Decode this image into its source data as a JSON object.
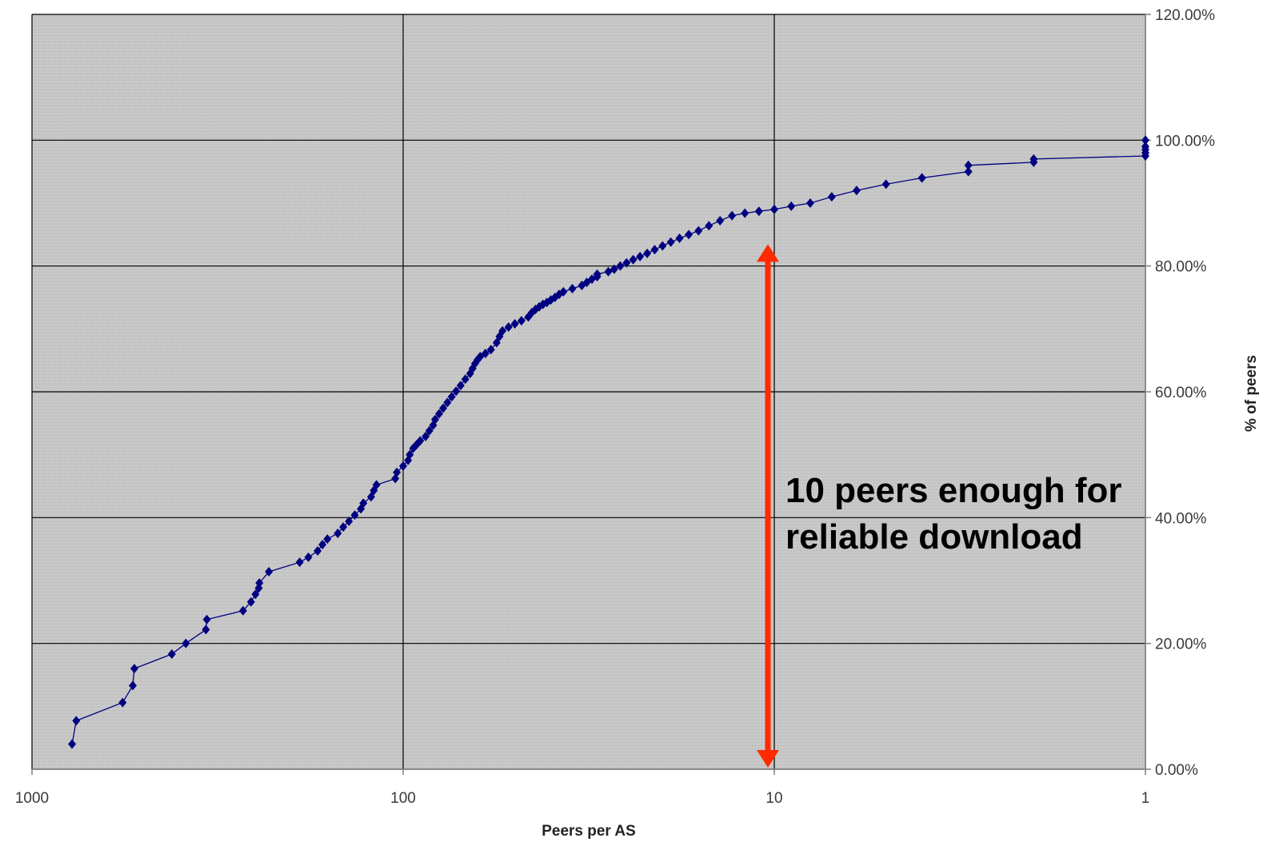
{
  "chart_data": {
    "type": "line",
    "xlabel": "Peers per AS",
    "ylabel": "% of peers",
    "x_scale": "log",
    "x_reversed": true,
    "xlim": [
      1000,
      1
    ],
    "ylim": [
      0,
      1.2
    ],
    "grid": true,
    "legend": "none",
    "x_ticks": [
      {
        "value": 1000,
        "label": "1000"
      },
      {
        "value": 100,
        "label": "100"
      },
      {
        "value": 10,
        "label": "10"
      },
      {
        "value": 1,
        "label": "1"
      }
    ],
    "y_ticks": [
      {
        "value": 0.0,
        "label": "0.00%"
      },
      {
        "value": 0.2,
        "label": "20.00%"
      },
      {
        "value": 0.4,
        "label": "40.00%"
      },
      {
        "value": 0.6,
        "label": "60.00%"
      },
      {
        "value": 0.8,
        "label": "80.00%"
      },
      {
        "value": 1.0,
        "label": "100.00%"
      },
      {
        "value": 1.2,
        "label": "120.00%"
      }
    ],
    "series": [
      {
        "x": [
          780,
          760,
          570,
          535,
          530,
          420,
          385,
          340,
          338,
          270,
          257,
          250,
          245,
          244,
          230,
          190,
          180,
          170,
          165,
          160,
          150,
          145,
          140,
          135,
          130,
          128,
          122,
          120,
          118,
          105,
          104,
          100,
          97,
          96,
          94,
          92,
          90,
          87,
          85,
          83,
          82,
          80,
          78,
          76,
          74,
          72,
          70,
          68,
          66,
          65,
          64,
          63,
          62,
          60,
          58,
          56,
          55,
          54,
          52,
          50,
          48,
          46,
          45,
          44,
          43,
          42,
          41,
          40,
          39,
          38,
          37,
          35,
          33,
          32,
          31,
          30,
          30,
          28,
          27,
          26,
          25,
          24,
          23,
          22,
          21,
          20,
          19,
          18,
          17,
          16,
          15,
          14,
          13,
          12,
          11,
          10,
          9,
          8,
          7,
          6,
          5,
          4,
          4,
          3,
          3,
          2,
          2,
          1,
          1,
          1,
          1,
          1
        ],
        "y": [
          0.04,
          0.077,
          0.106,
          0.133,
          0.16,
          0.183,
          0.2,
          0.222,
          0.238,
          0.252,
          0.266,
          0.278,
          0.288,
          0.296,
          0.314,
          0.329,
          0.337,
          0.347,
          0.357,
          0.366,
          0.375,
          0.385,
          0.394,
          0.404,
          0.414,
          0.423,
          0.433,
          0.443,
          0.452,
          0.462,
          0.472,
          0.482,
          0.491,
          0.5,
          0.51,
          0.516,
          0.522,
          0.529,
          0.538,
          0.547,
          0.556,
          0.565,
          0.574,
          0.583,
          0.592,
          0.601,
          0.61,
          0.62,
          0.629,
          0.637,
          0.645,
          0.651,
          0.656,
          0.661,
          0.667,
          0.678,
          0.688,
          0.697,
          0.703,
          0.708,
          0.713,
          0.719,
          0.726,
          0.731,
          0.735,
          0.739,
          0.742,
          0.746,
          0.75,
          0.755,
          0.759,
          0.764,
          0.769,
          0.774,
          0.779,
          0.783,
          0.787,
          0.791,
          0.795,
          0.8,
          0.805,
          0.81,
          0.815,
          0.82,
          0.826,
          0.832,
          0.838,
          0.844,
          0.85,
          0.856,
          0.864,
          0.872,
          0.88,
          0.884,
          0.887,
          0.89,
          0.895,
          0.9,
          0.91,
          0.92,
          0.93,
          0.94,
          0.94,
          0.95,
          0.96,
          0.965,
          0.97,
          0.975,
          0.98,
          0.99,
          1.0,
          0.985
        ]
      }
    ],
    "annotation": {
      "line1": "10 peers enough for",
      "line2": "reliable download",
      "arrow_color": "#ff2a00",
      "arrow_x": 10,
      "arrow_y_range": [
        0.0,
        0.85
      ]
    },
    "colors": {
      "plot_bg": "#c8c8c8",
      "grid": "#000000",
      "series": "#000080"
    }
  }
}
